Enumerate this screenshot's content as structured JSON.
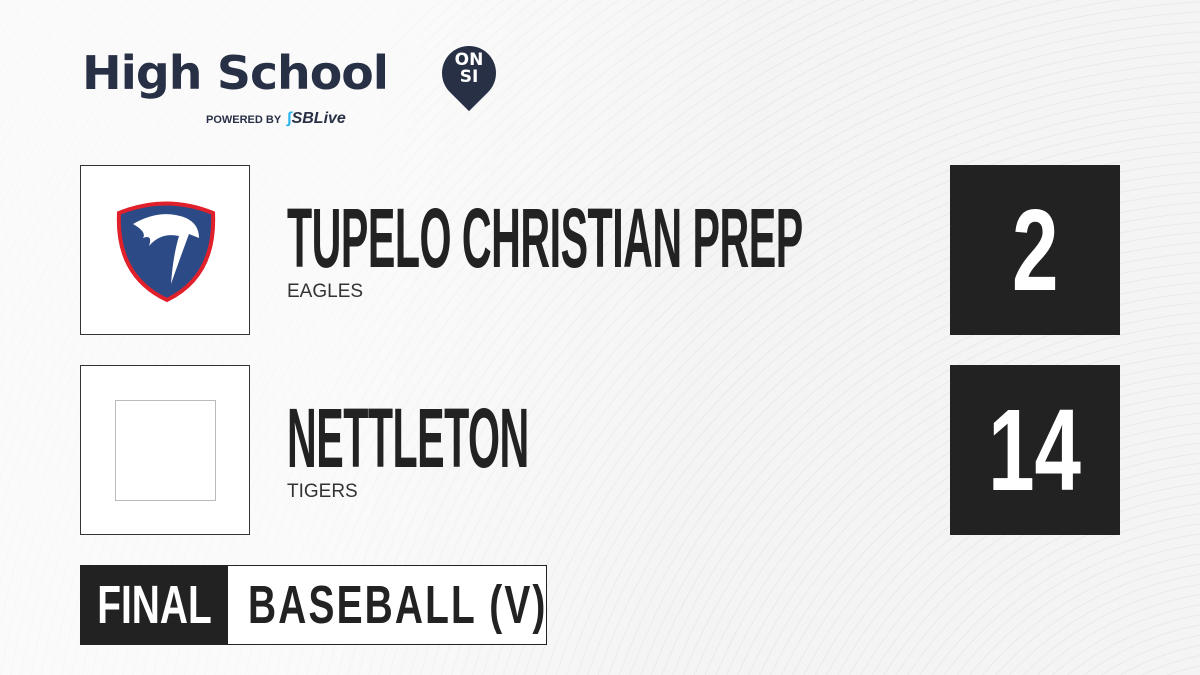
{
  "brand": {
    "title": "High School",
    "badge_top": "ON",
    "badge_bottom": "SI",
    "powered_by": "POWERED BY",
    "partner": "SBLive"
  },
  "teams": [
    {
      "name": "TUPELO CHRISTIAN PREP",
      "mascot": "EAGLES",
      "score": "2",
      "logo": "eagle-shield",
      "colors": {
        "shield": "#2c4a86",
        "border": "#e0202a"
      }
    },
    {
      "name": "NETTLETON",
      "mascot": "TIGERS",
      "score": "14",
      "logo": "placeholder"
    }
  ],
  "status": "FINAL",
  "sport": "BASEBALL (V)"
}
